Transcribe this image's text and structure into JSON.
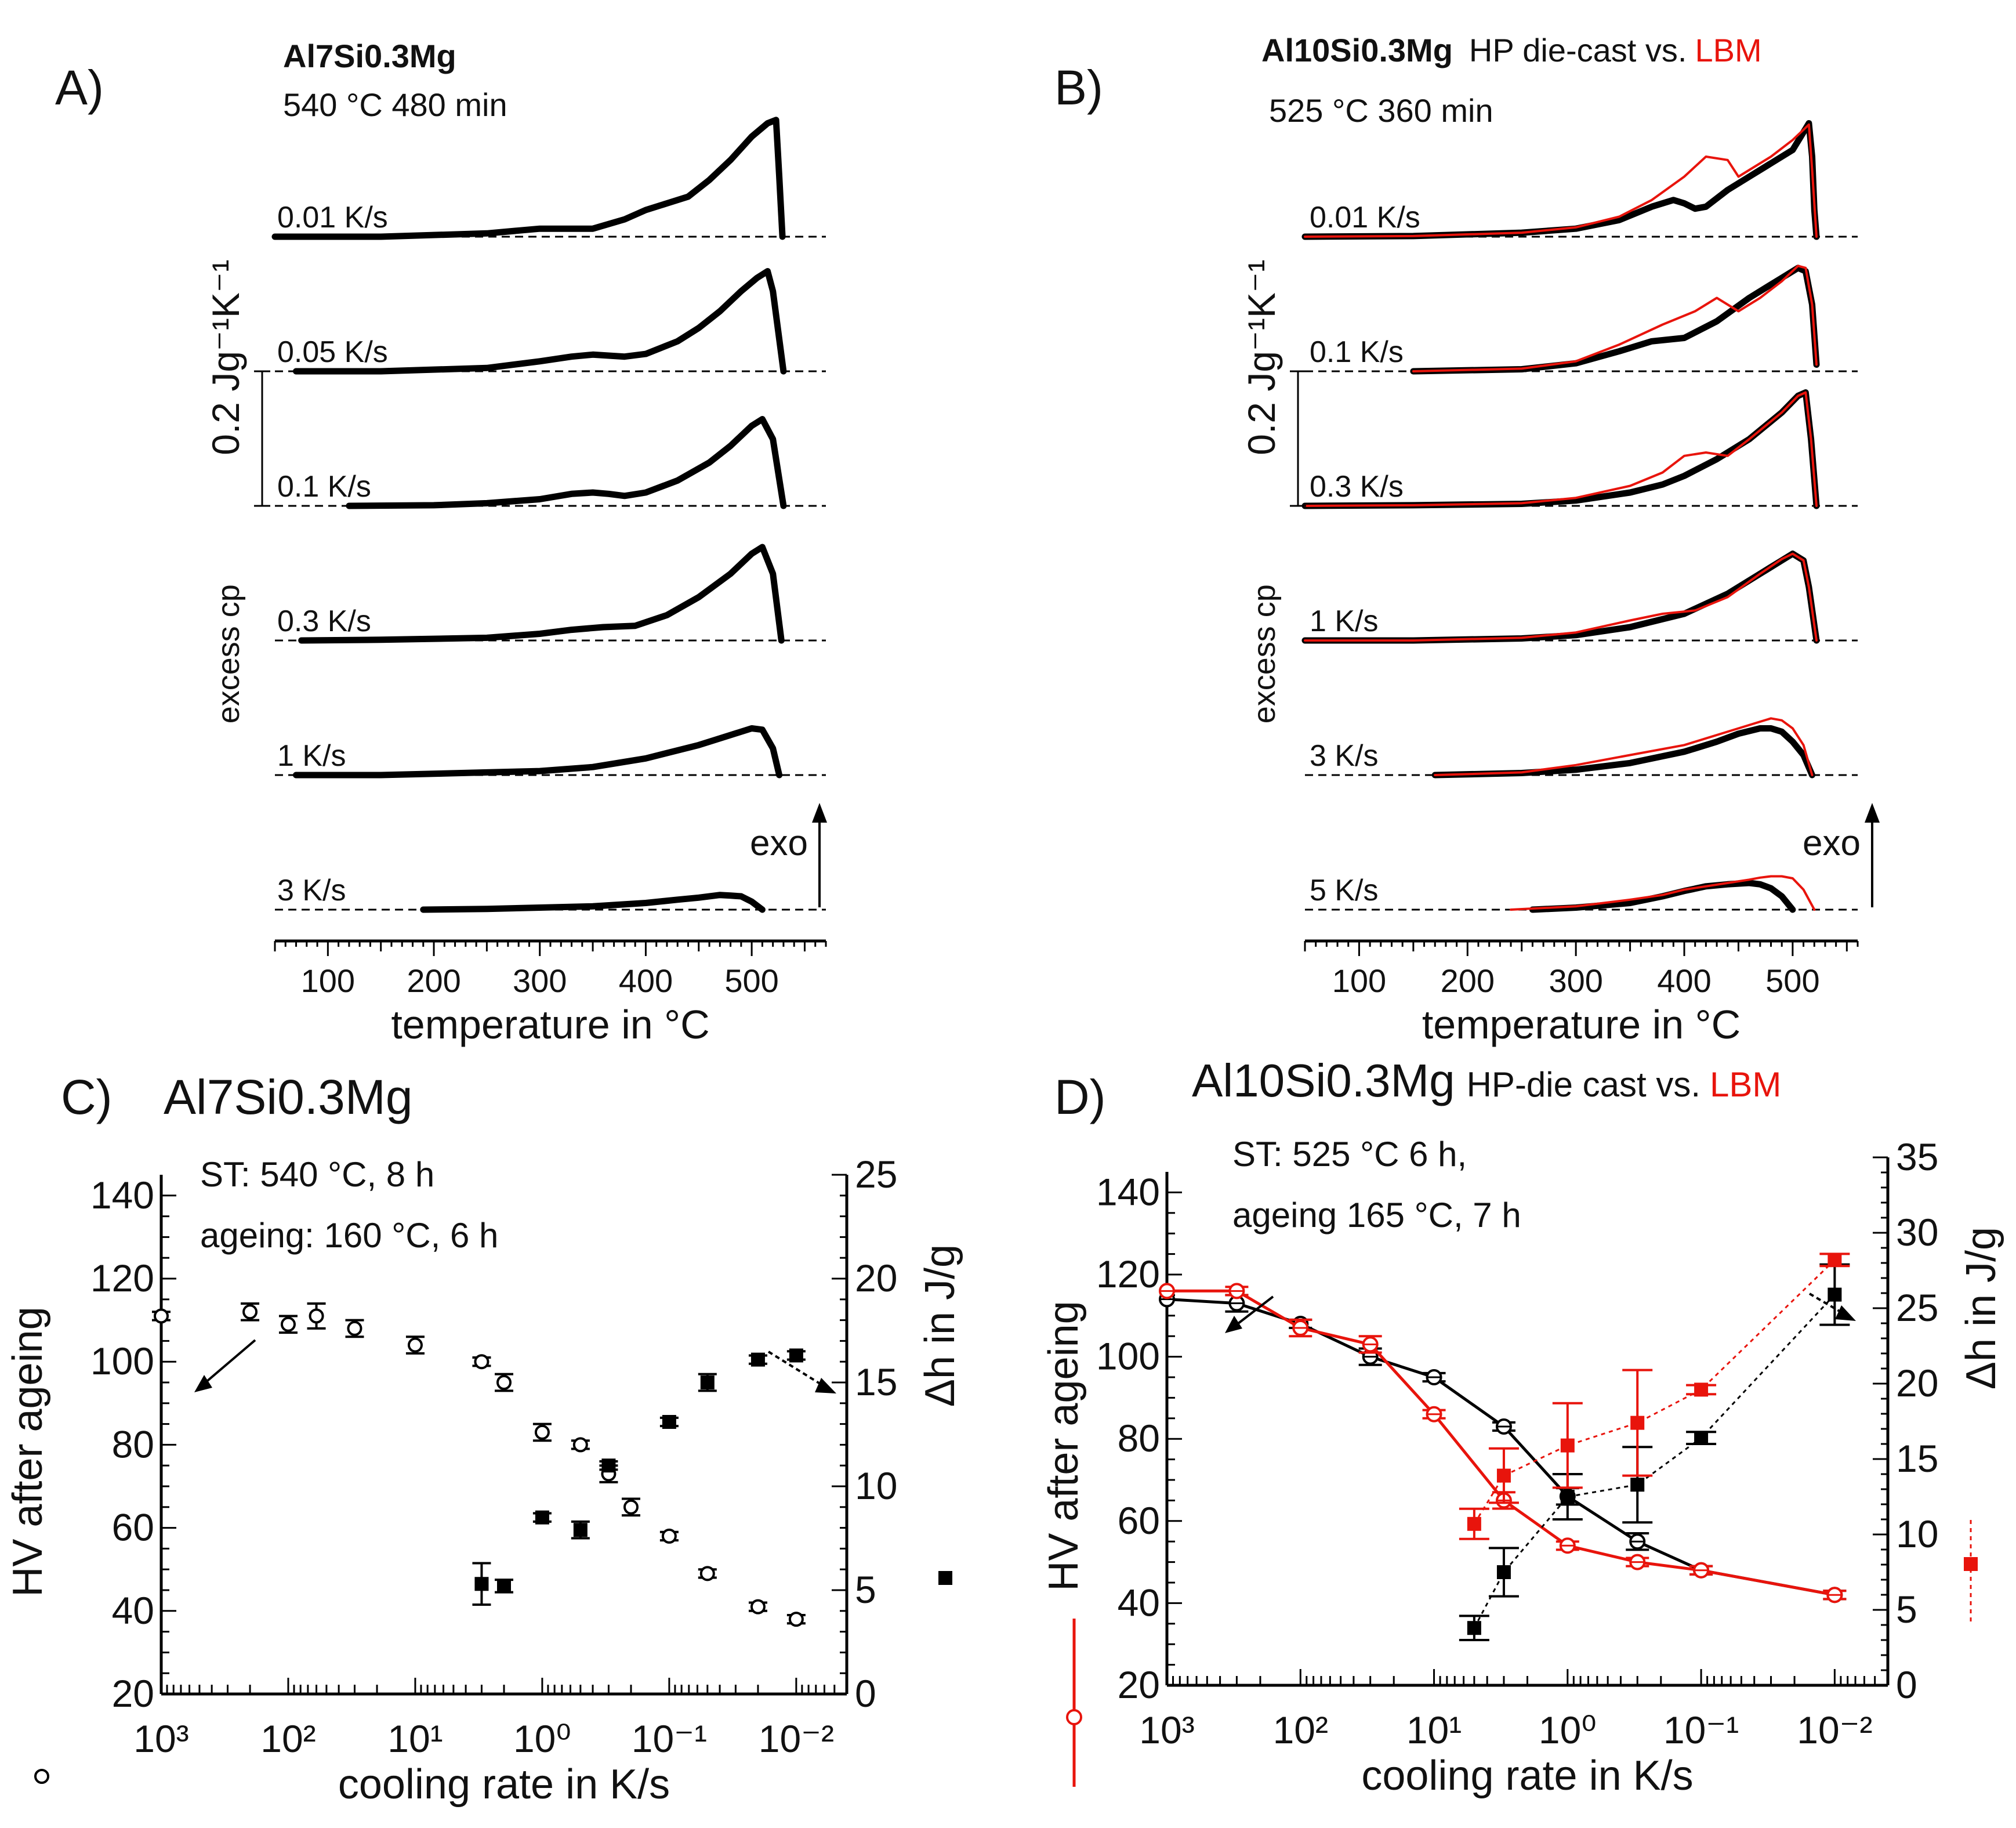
{
  "colors": {
    "die_cast": "#000000",
    "lbm": "#e8140c"
  },
  "chart_data": [
    {
      "panel": "A)",
      "type": "line",
      "title": "Al7Si0.3Mg",
      "condition": "540 °C  480 min",
      "xlabel": "temperature in °C",
      "ylabel": "excess cp",
      "scale_bar_label": "0.2 Jg⁻¹K⁻¹",
      "scale_bar_value": 0.2,
      "xlim": [
        50,
        570
      ],
      "xticks": [
        100,
        200,
        300,
        400,
        500
      ],
      "exo_label": "exo",
      "series": [
        {
          "name": "0.01 K/s",
          "x": [
            50,
            150,
            250,
            300,
            350,
            380,
            400,
            420,
            440,
            460,
            480,
            500,
            515,
            523,
            526,
            529
          ],
          "y": [
            0,
            0,
            0.005,
            0.012,
            0.012,
            0.026,
            0.04,
            0.05,
            0.06,
            0.085,
            0.115,
            0.15,
            0.17,
            0.175,
            0.09,
            0
          ]
        },
        {
          "name": "0.05 K/s",
          "x": [
            70,
            150,
            250,
            300,
            330,
            350,
            380,
            400,
            430,
            450,
            470,
            490,
            505,
            515,
            520,
            525,
            530
          ],
          "y": [
            0,
            0,
            0.005,
            0.015,
            0.022,
            0.025,
            0.022,
            0.026,
            0.045,
            0.065,
            0.09,
            0.12,
            0.14,
            0.15,
            0.12,
            0.06,
            0
          ]
        },
        {
          "name": "0.1 K/s",
          "x": [
            120,
            200,
            250,
            300,
            330,
            350,
            365,
            380,
            400,
            430,
            460,
            480,
            500,
            510,
            520,
            530
          ],
          "y": [
            0,
            0.001,
            0.004,
            0.01,
            0.018,
            0.02,
            0.018,
            0.015,
            0.02,
            0.038,
            0.065,
            0.09,
            0.12,
            0.13,
            0.1,
            0
          ]
        },
        {
          "name": "0.3 K/s",
          "x": [
            75,
            150,
            250,
            300,
            330,
            360,
            390,
            420,
            450,
            480,
            500,
            510,
            520,
            528
          ],
          "y": [
            0,
            0.001,
            0.004,
            0.01,
            0.016,
            0.02,
            0.022,
            0.038,
            0.065,
            0.1,
            0.13,
            0.14,
            0.1,
            0
          ]
        },
        {
          "name": "1 K/s",
          "x": [
            70,
            150,
            250,
            300,
            350,
            400,
            450,
            480,
            500,
            510,
            520,
            526
          ],
          "y": [
            0,
            0,
            0.004,
            0.006,
            0.012,
            0.025,
            0.045,
            0.06,
            0.07,
            0.068,
            0.04,
            0
          ]
        },
        {
          "name": "3 K/s",
          "x": [
            190,
            250,
            300,
            350,
            400,
            430,
            450,
            470,
            480,
            490,
            500,
            510
          ],
          "y": [
            0,
            0.001,
            0.003,
            0.005,
            0.01,
            0.015,
            0.018,
            0.022,
            0.021,
            0.02,
            0.012,
            0
          ]
        }
      ]
    },
    {
      "panel": "B)",
      "type": "line",
      "title": "Al10Si0.3Mg",
      "subtitle": "HP die-cast vs.",
      "subtitle_red": "LBM",
      "condition": "525 °C  360 min",
      "xlabel": "temperature in °C",
      "ylabel": "excess cp",
      "scale_bar_label": "0.2 Jg⁻¹K⁻¹",
      "scale_bar_value": 0.2,
      "xlim": [
        50,
        560
      ],
      "xticks": [
        100,
        200,
        300,
        400,
        500
      ],
      "exo_label": "exo",
      "series": [
        {
          "name": "0.01 K/s",
          "rate": "0.01 K/s",
          "group": "die_cast",
          "x": [
            50,
            150,
            250,
            300,
            340,
            370,
            390,
            400,
            410,
            420,
            440,
            460,
            480,
            500,
            515,
            518,
            520,
            522
          ],
          "y": [
            0,
            0.001,
            0.006,
            0.012,
            0.025,
            0.045,
            0.055,
            0.05,
            0.042,
            0.045,
            0.07,
            0.09,
            0.11,
            0.13,
            0.17,
            0.12,
            0.04,
            0
          ]
        },
        {
          "name": "0.01 K/s LBM",
          "rate": "0.01 K/s",
          "group": "lbm",
          "x": [
            50,
            150,
            250,
            300,
            340,
            370,
            400,
            420,
            440,
            450,
            460,
            480,
            500,
            515,
            518,
            522
          ],
          "y": [
            0,
            0.001,
            0.006,
            0.014,
            0.03,
            0.055,
            0.09,
            0.12,
            0.115,
            0.09,
            0.1,
            0.12,
            0.145,
            0.168,
            0.1,
            0
          ]
        },
        {
          "name": "0.1 K/s",
          "rate": "0.1 K/s",
          "group": "die_cast",
          "x": [
            150,
            250,
            300,
            340,
            370,
            400,
            430,
            460,
            490,
            505,
            512,
            518,
            522
          ],
          "y": [
            0,
            0.003,
            0.012,
            0.03,
            0.045,
            0.05,
            0.075,
            0.11,
            0.14,
            0.155,
            0.15,
            0.1,
            0.01
          ]
        },
        {
          "name": "0.1 K/s LBM",
          "rate": "0.1 K/s",
          "group": "lbm",
          "x": [
            150,
            250,
            300,
            340,
            380,
            410,
            430,
            450,
            470,
            490,
            505,
            512,
            518,
            522
          ],
          "y": [
            0,
            0.004,
            0.015,
            0.04,
            0.07,
            0.09,
            0.11,
            0.09,
            0.11,
            0.135,
            0.158,
            0.155,
            0.1,
            0.01
          ]
        },
        {
          "name": "0.3 K/s",
          "rate": "0.3 K/s",
          "group": "die_cast",
          "x": [
            50,
            150,
            250,
            300,
            350,
            380,
            400,
            430,
            460,
            490,
            505,
            512,
            517,
            522
          ],
          "y": [
            0,
            0.001,
            0.003,
            0.008,
            0.02,
            0.032,
            0.045,
            0.07,
            0.1,
            0.14,
            0.165,
            0.17,
            0.1,
            0
          ]
        },
        {
          "name": "0.3 K/s LBM",
          "rate": "0.3 K/s",
          "group": "lbm",
          "x": [
            50,
            150,
            250,
            300,
            350,
            380,
            400,
            420,
            440,
            460,
            490,
            505,
            512,
            517,
            522
          ],
          "y": [
            0,
            0.001,
            0.004,
            0.012,
            0.03,
            0.05,
            0.075,
            0.08,
            0.075,
            0.1,
            0.14,
            0.165,
            0.17,
            0.1,
            0
          ]
        },
        {
          "name": "1 K/s",
          "rate": "1 K/s",
          "group": "die_cast",
          "x": [
            50,
            150,
            250,
            300,
            350,
            400,
            440,
            470,
            490,
            500,
            510,
            515,
            522
          ],
          "y": [
            0,
            0,
            0.003,
            0.008,
            0.02,
            0.04,
            0.07,
            0.1,
            0.12,
            0.13,
            0.12,
            0.08,
            0
          ]
        },
        {
          "name": "1 K/s LBM",
          "rate": "1 K/s",
          "group": "lbm",
          "x": [
            50,
            150,
            250,
            300,
            350,
            380,
            410,
            440,
            470,
            490,
            500,
            510,
            515,
            522
          ],
          "y": [
            0,
            0,
            0.004,
            0.012,
            0.03,
            0.04,
            0.045,
            0.065,
            0.1,
            0.122,
            0.13,
            0.12,
            0.08,
            0
          ]
        },
        {
          "name": "3 K/s",
          "rate": "3 K/s",
          "group": "die_cast",
          "x": [
            170,
            250,
            300,
            350,
            400,
            430,
            450,
            470,
            480,
            490,
            500,
            510,
            518
          ],
          "y": [
            0,
            0.003,
            0.008,
            0.018,
            0.035,
            0.05,
            0.062,
            0.07,
            0.07,
            0.065,
            0.05,
            0.03,
            0
          ]
        },
        {
          "name": "3 K/s LBM",
          "rate": "3 K/s",
          "group": "lbm",
          "x": [
            170,
            250,
            300,
            350,
            400,
            430,
            450,
            470,
            480,
            490,
            500,
            510,
            518
          ],
          "y": [
            0,
            0.004,
            0.015,
            0.03,
            0.045,
            0.06,
            0.07,
            0.08,
            0.085,
            0.082,
            0.07,
            0.045,
            0
          ]
        },
        {
          "name": "5 K/s",
          "rate": "5 K/s",
          "group": "die_cast",
          "x": [
            260,
            300,
            350,
            380,
            400,
            420,
            440,
            460,
            470,
            480,
            490,
            500
          ],
          "y": [
            0,
            0.003,
            0.01,
            0.02,
            0.028,
            0.035,
            0.038,
            0.04,
            0.038,
            0.032,
            0.02,
            0
          ]
        },
        {
          "name": "5 K/s LBM",
          "rate": "5 K/s",
          "group": "lbm",
          "x": [
            240,
            300,
            350,
            380,
            400,
            420,
            440,
            460,
            470,
            480,
            490,
            500,
            510,
            520
          ],
          "y": [
            0,
            0.005,
            0.015,
            0.022,
            0.03,
            0.035,
            0.04,
            0.045,
            0.048,
            0.05,
            0.05,
            0.047,
            0.03,
            0
          ]
        }
      ]
    },
    {
      "panel": "C)",
      "type": "scatter",
      "title": "Al7Si0.3Mg",
      "annotations": [
        "ST: 540 °C, 8 h",
        "ageing: 160 °C, 6 h"
      ],
      "xlabel": "cooling rate in K/s",
      "xscale": "log-reversed",
      "xticks": [
        "10³",
        "10²",
        "10¹",
        "10⁰",
        "10⁻¹",
        "10⁻²"
      ],
      "xlim": [
        1000,
        0.004
      ],
      "ylabel": "HV after ageing",
      "ylim": [
        20,
        145
      ],
      "yticks": [
        20,
        40,
        60,
        80,
        100,
        120,
        140
      ],
      "y2label": "Δh in J/g",
      "y2lim": [
        0,
        25
      ],
      "y2ticks": [
        0,
        5,
        10,
        15,
        20,
        25
      ],
      "series": [
        {
          "name": "HV",
          "axis": "left",
          "marker": "open-circle",
          "x": [
            1000,
            200,
            100,
            60,
            30,
            10,
            3,
            2,
            1,
            0.5,
            0.3,
            0.2,
            0.1,
            0.05,
            0.02,
            0.01
          ],
          "y": [
            111,
            112,
            109,
            111,
            108,
            104,
            100,
            95,
            83,
            80,
            73,
            65,
            58,
            49,
            41,
            38
          ],
          "err": [
            1,
            2,
            2,
            3,
            2,
            2,
            1,
            2,
            2,
            1,
            2,
            2,
            1,
            1,
            1,
            1
          ]
        },
        {
          "name": "Δh",
          "axis": "right",
          "marker": "filled-square",
          "x": [
            3,
            2,
            1,
            0.5,
            0.3,
            0.1,
            0.05,
            0.02,
            0.01
          ],
          "y": [
            5.3,
            5.2,
            8.5,
            7.9,
            11.0,
            13.1,
            15.0,
            16.1,
            16.3
          ],
          "err": [
            1.0,
            0.3,
            0.2,
            0.4,
            0.2,
            0.2,
            0.4,
            0.2,
            0.2
          ]
        }
      ]
    },
    {
      "panel": "D)",
      "type": "line",
      "title": "Al10Si0.3Mg",
      "subtitle": "HP-die cast vs.",
      "subtitle_red": "LBM",
      "annotations": [
        "ST: 525 °C 6 h,",
        "ageing 165 °C, 7 h"
      ],
      "xlabel": "cooling rate in K/s",
      "xscale": "log-reversed",
      "xticks": [
        "10³",
        "10²",
        "10¹",
        "10⁰",
        "10⁻¹",
        "10⁻²"
      ],
      "xlim": [
        1000,
        0.004
      ],
      "ylabel": "HV after ageing",
      "ylim": [
        20,
        145
      ],
      "yticks": [
        20,
        40,
        60,
        80,
        100,
        120,
        140
      ],
      "y2label": "Δh in J/g",
      "y2lim": [
        0,
        35
      ],
      "y2ticks": [
        0,
        5,
        10,
        15,
        20,
        25,
        30,
        35
      ],
      "series": [
        {
          "name": "HV HP-die cast",
          "axis": "left",
          "group": "die_cast",
          "x": [
            1000,
            300,
            100,
            30,
            10,
            3,
            1,
            0.3,
            0.1,
            0.01
          ],
          "y": [
            114,
            113,
            108,
            100,
            95,
            83,
            66,
            55,
            48,
            42
          ],
          "err": [
            0,
            2,
            1,
            2,
            1,
            1,
            2,
            2,
            1,
            1
          ]
        },
        {
          "name": "HV LBM",
          "axis": "left",
          "group": "lbm",
          "x": [
            1000,
            300,
            100,
            30,
            10,
            3,
            1,
            0.3,
            0.1,
            0.01
          ],
          "y": [
            116,
            116,
            107,
            103,
            86,
            65,
            54,
            50,
            48,
            42
          ],
          "err": [
            0,
            1,
            2,
            2,
            1,
            2,
            1,
            1,
            1,
            1
          ]
        },
        {
          "name": "Δh HP-die cast",
          "axis": "right",
          "group": "die_cast",
          "x": [
            5,
            3,
            1,
            0.3,
            0.1,
            0.01
          ],
          "y": [
            3.8,
            7.5,
            12.5,
            13.3,
            16.4,
            25.9
          ],
          "err": [
            0.8,
            1.6,
            1.5,
            2.5,
            0.4,
            2.0
          ]
        },
        {
          "name": "Δh LBM",
          "axis": "right",
          "group": "lbm",
          "x": [
            5,
            3,
            1,
            0.3,
            0.1,
            0.01
          ],
          "y": [
            10.7,
            13.9,
            15.9,
            17.4,
            19.6,
            28.2
          ],
          "err": [
            1.0,
            1.8,
            2.8,
            3.5,
            0.3,
            0.4
          ]
        }
      ]
    }
  ],
  "labels": {
    "panel_a": "A)",
    "panel_b": "B)",
    "panel_c": "C)",
    "panel_d": "D)",
    "title_a": "Al7Si0.3Mg",
    "cond_a": "540 °C  480 min",
    "title_b": "Al10Si0.3Mg",
    "sub_b": "HP die-cast vs.",
    "sub_b_red": "LBM",
    "cond_b": "525 °C  360 min",
    "title_c": "Al7Si0.3Mg",
    "ann_c1": "ST: 540 °C, 8 h",
    "ann_c2": "ageing: 160 °C, 6 h",
    "title_d": "Al10Si0.3Mg",
    "sub_d": "HP-die cast vs.",
    "sub_d_red": "LBM",
    "ann_d1": "ST: 525 °C 6 h,",
    "ann_d2": "ageing 165 °C, 7 h",
    "xlabel_temp": "temperature in °C",
    "xlabel_rate": "cooling rate in K/s",
    "ylabel_cp": "excess cp",
    "ylabel_hv": "HV after ageing",
    "y2label_dh": "Δh in J/g",
    "exo": "exo"
  }
}
